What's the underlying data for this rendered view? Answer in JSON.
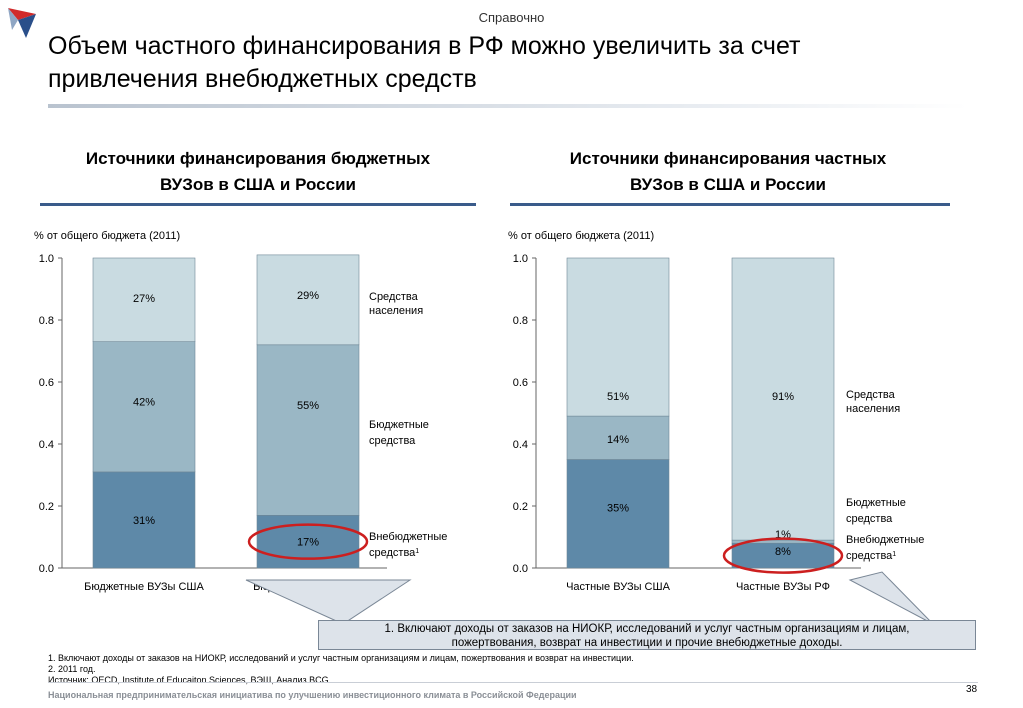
{
  "header": {
    "section_tag": "Справочно",
    "title_line1": "Объем частного финансирования в РФ можно увеличить за счет",
    "title_line2": "привлечения внебюджетных средств"
  },
  "colors": {
    "population": "#c9dbe1",
    "budget": "#9ab7c5",
    "extra": "#5e89a8",
    "highlight": "#cc1f1f",
    "rule": "#3a5b8a"
  },
  "chart_data": [
    {
      "type": "bar",
      "title_line1": "Источники финансирования бюджетных",
      "title_line2": "ВУЗов в США и России",
      "unit_label": "% от общего бюджета (2011)",
      "ylim": [
        0,
        1.0
      ],
      "yticks": [
        "0.0",
        "0.2",
        "0.4",
        "0.6",
        "0.8",
        "1.0"
      ],
      "categories": [
        "Бюджетные ВУЗы США",
        "Бюджетные ВУЗы РФ"
      ],
      "series": [
        {
          "key": "extra",
          "values": [
            0.31,
            0.17
          ],
          "labels": [
            "31%",
            "17%"
          ]
        },
        {
          "key": "budget",
          "values": [
            0.42,
            0.55
          ],
          "labels": [
            "42%",
            "55%"
          ]
        },
        {
          "key": "population",
          "values": [
            0.27,
            0.29
          ],
          "labels": [
            "27%",
            "29%"
          ]
        }
      ],
      "legend": [
        {
          "line1": "Средства",
          "line2": "населения",
          "sup": ""
        },
        {
          "line1": "Бюджетные",
          "line2": "средства",
          "sup": ""
        },
        {
          "line1": "Внебюджетные",
          "line2": "средства",
          "sup": "1"
        }
      ]
    },
    {
      "type": "bar",
      "title_line1": "Источники финансирования частных",
      "title_line2": "ВУЗов в США и России",
      "unit_label": "% от общего бюджета (2011)",
      "ylim": [
        0,
        1.0
      ],
      "yticks": [
        "0.0",
        "0.2",
        "0.4",
        "0.6",
        "0.8",
        "1.0"
      ],
      "categories": [
        "Частные ВУЗы США",
        "Частные ВУЗы РФ"
      ],
      "series": [
        {
          "key": "extra",
          "values": [
            0.35,
            0.08
          ],
          "labels": [
            "35%",
            "8%"
          ]
        },
        {
          "key": "budget",
          "values": [
            0.14,
            0.01
          ],
          "labels": [
            "14%",
            "1%"
          ]
        },
        {
          "key": "population",
          "values": [
            0.51,
            0.91
          ],
          "labels": [
            "51%",
            "91%"
          ]
        }
      ],
      "legend": [
        {
          "line1": "Средства",
          "line2": "населения",
          "sup": ""
        },
        {
          "line1": "Бюджетные",
          "line2": "средства",
          "sup": ""
        },
        {
          "line1": "Внебюджетные",
          "line2": "средства",
          "sup": "1"
        }
      ]
    }
  ],
  "callout": {
    "line1": "1. Включают доходы от заказов на НИОКР,  исследований и услуг частным организациям и лицам,",
    "line2": "пожертвования, возврат на инвестиции и прочие внебюджетные доходы."
  },
  "footnotes": {
    "note1": "1. Включают доходы от заказов на НИОКР,  исследований и услуг частным организациям и лицам, пожертвования и возврат на инвестиции.",
    "note2": "2. 2011 год.",
    "source": "Источник: OECD, Institute of Educaiton Sciences, ВЭШ, Анализ BCG"
  },
  "footer": {
    "text": "Национальная предпринимательская инициатива по улучшению инвестиционного климата в Российской Федерации",
    "page_number": "38"
  }
}
